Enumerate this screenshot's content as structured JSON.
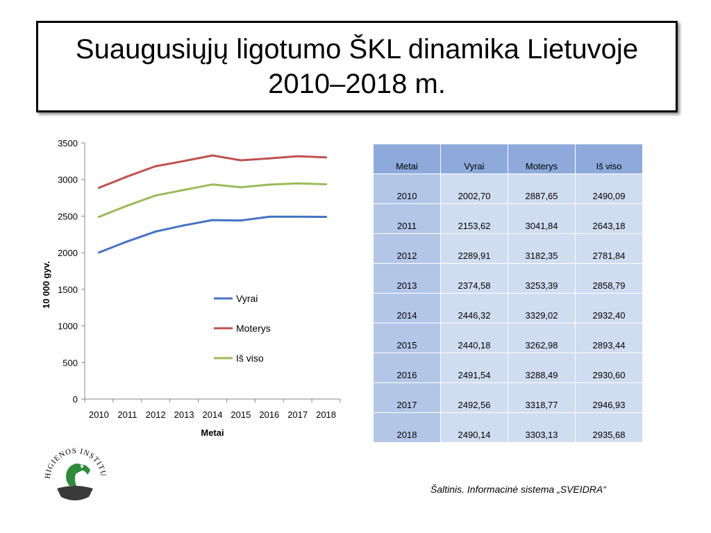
{
  "title": {
    "line1": "Suaugusiųjų ligotumo ŠKL dinamika Lietuvoje",
    "line2": "2010–2018 m."
  },
  "chart_data": {
    "type": "line",
    "x": [
      "2010",
      "2011",
      "2012",
      "2013",
      "2014",
      "2015",
      "2016",
      "2017",
      "2018"
    ],
    "series": [
      {
        "name": "Vyrai",
        "color": "#4472c4",
        "values": [
          2002.7,
          2153.62,
          2289.91,
          2374.58,
          2446.32,
          2440.18,
          2491.54,
          2492.56,
          2490.14
        ]
      },
      {
        "name": "Moterys",
        "color": "#c0504d",
        "values": [
          2887.65,
          3041.84,
          3182.35,
          3253.39,
          3329.02,
          3262.98,
          3288.49,
          3318.77,
          3303.13
        ]
      },
      {
        "name": "Iš viso",
        "color": "#9bbb59",
        "values": [
          2490.09,
          2643.18,
          2781.84,
          2858.79,
          2932.4,
          2893.44,
          2930.6,
          2946.93,
          2935.68
        ]
      }
    ],
    "xlabel": "Metai",
    "ylabel": "10 000 gyv.",
    "ylim": [
      0,
      3500
    ],
    "yticks": [
      "0",
      "500",
      "1000",
      "1500",
      "2000",
      "2500",
      "3000",
      "3500"
    ],
    "grid": false,
    "legend": "center"
  },
  "table": {
    "headers": [
      "Metai",
      "Vyrai",
      "Moterys",
      "Iš viso"
    ],
    "rows": [
      [
        "2010",
        "2002,70",
        "2887,65",
        "2490,09"
      ],
      [
        "2011",
        "2153,62",
        "3041,84",
        "2643,18"
      ],
      [
        "2012",
        "2289,91",
        "3182,35",
        "2781,84"
      ],
      [
        "2013",
        "2374,58",
        "3253,39",
        "2858,79"
      ],
      [
        "2014",
        "2446,32",
        "3329,02",
        "2932,40"
      ],
      [
        "2015",
        "2440,18",
        "3262,98",
        "2893,44"
      ],
      [
        "2016",
        "2491,54",
        "3288,49",
        "2930,60"
      ],
      [
        "2017",
        "2492,56",
        "3318,77",
        "2946,93"
      ],
      [
        "2018",
        "2490,14",
        "3303,13",
        "2935,68"
      ]
    ]
  },
  "source": "Šaltinis. Informacinė sistema „SVEIDRA“",
  "logo": {
    "text": "HIGIENOS INSTITUTAS",
    "icon": "higienos-institutas-logo"
  }
}
